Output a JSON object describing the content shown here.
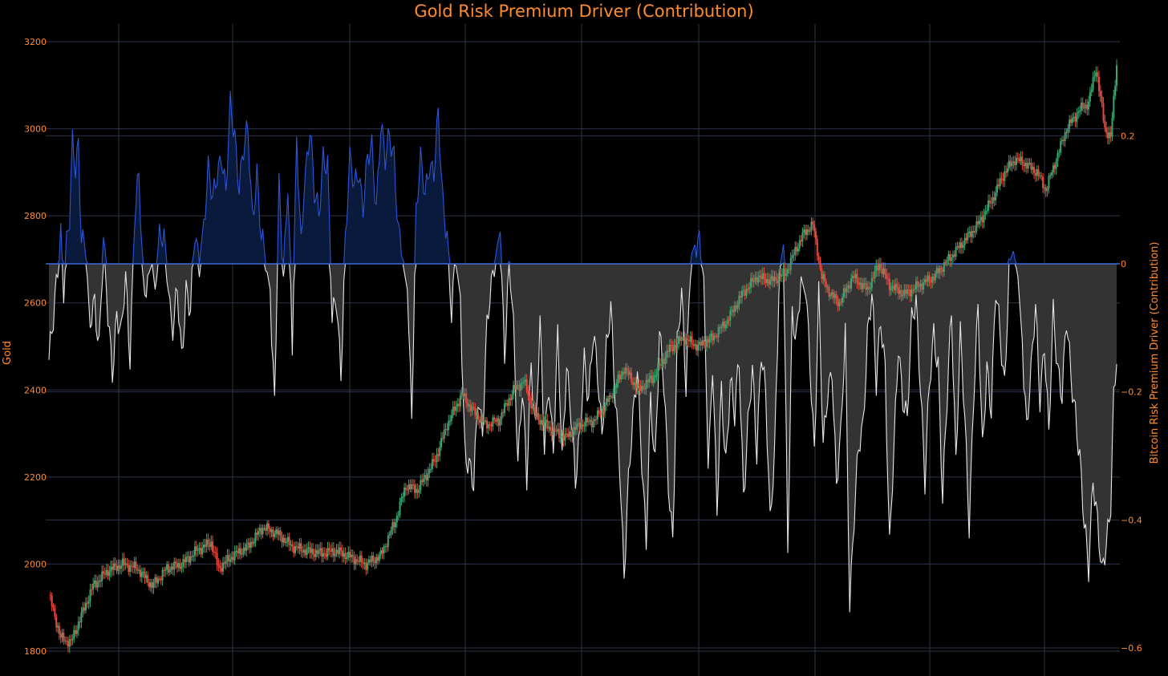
{
  "chart_data": {
    "type": "line",
    "title": "Gold Risk Premium Driver (Contribution)",
    "grid": true,
    "legend": "none",
    "colors": {
      "background": "#000000",
      "text": "#ff8c2a",
      "grid": "#2b3548",
      "up_candle": "#3aa571",
      "down_candle": "#e8483b",
      "positive_fill": "#0a1a3d",
      "positive_line": "#2b55d6",
      "negative_fill": "#333333",
      "negative_line": "#e6e6e6",
      "zero_line": "#3a6bd9"
    },
    "y_left": {
      "label": "Gold",
      "range": [
        1800,
        3200
      ],
      "ticks": [
        "1800",
        "2000",
        "2200",
        "2400",
        "2600",
        "2800",
        "3000",
        "3200"
      ]
    },
    "y_right": {
      "label": "Bitcoin Risk Premium Driver (Contribution)",
      "range": [
        -0.6,
        0.3
      ],
      "ticks": [
        "−0.6",
        "−0.4",
        "−0.2",
        "0",
        "0.2"
      ]
    },
    "gold_candles": {
      "description_points": "approximate closing path read from the chart (bar index, price)",
      "path": [
        [
          0,
          1930
        ],
        [
          8,
          1830
        ],
        [
          15,
          1820
        ],
        [
          20,
          1865
        ],
        [
          30,
          1950
        ],
        [
          40,
          1985
        ],
        [
          50,
          2000
        ],
        [
          60,
          1990
        ],
        [
          70,
          1950
        ],
        [
          80,
          1990
        ],
        [
          90,
          2000
        ],
        [
          100,
          2030
        ],
        [
          110,
          2050
        ],
        [
          115,
          1990
        ],
        [
          125,
          2020
        ],
        [
          135,
          2040
        ],
        [
          145,
          2085
        ],
        [
          155,
          2070
        ],
        [
          165,
          2040
        ],
        [
          175,
          2030
        ],
        [
          185,
          2025
        ],
        [
          195,
          2030
        ],
        [
          205,
          2015
        ],
        [
          215,
          2000
        ],
        [
          225,
          2020
        ],
        [
          235,
          2100
        ],
        [
          242,
          2180
        ],
        [
          250,
          2170
        ],
        [
          262,
          2240
        ],
        [
          270,
          2320
        ],
        [
          280,
          2390
        ],
        [
          288,
          2350
        ],
        [
          296,
          2320
        ],
        [
          305,
          2330
        ],
        [
          315,
          2400
        ],
        [
          322,
          2420
        ],
        [
          330,
          2340
        ],
        [
          340,
          2310
        ],
        [
          350,
          2290
        ],
        [
          360,
          2320
        ],
        [
          370,
          2330
        ],
        [
          380,
          2380
        ],
        [
          390,
          2450
        ],
        [
          400,
          2400
        ],
        [
          410,
          2430
        ],
        [
          420,
          2490
        ],
        [
          430,
          2520
        ],
        [
          440,
          2500
        ],
        [
          450,
          2520
        ],
        [
          460,
          2560
        ],
        [
          470,
          2620
        ],
        [
          480,
          2660
        ],
        [
          490,
          2650
        ],
        [
          500,
          2670
        ],
        [
          506,
          2720
        ],
        [
          512,
          2760
        ],
        [
          518,
          2780
        ],
        [
          524,
          2660
        ],
        [
          530,
          2620
        ],
        [
          536,
          2600
        ],
        [
          545,
          2660
        ],
        [
          555,
          2630
        ],
        [
          563,
          2690
        ],
        [
          570,
          2640
        ],
        [
          580,
          2620
        ],
        [
          590,
          2640
        ],
        [
          600,
          2660
        ],
        [
          610,
          2700
        ],
        [
          620,
          2740
        ],
        [
          630,
          2780
        ],
        [
          640,
          2840
        ],
        [
          648,
          2900
        ],
        [
          655,
          2930
        ],
        [
          662,
          2920
        ],
        [
          670,
          2900
        ],
        [
          676,
          2860
        ],
        [
          684,
          2940
        ],
        [
          690,
          3000
        ],
        [
          698,
          3040
        ],
        [
          705,
          3060
        ],
        [
          710,
          3140
        ],
        [
          716,
          3000
        ],
        [
          720,
          2980
        ],
        [
          724,
          3150
        ]
      ]
    },
    "contribution_series": {
      "n": 725,
      "points": [
        [
          0,
          -0.15
        ],
        [
          3,
          -0.1
        ],
        [
          5,
          -0.04
        ],
        [
          8,
          0.06
        ],
        [
          10,
          -0.03
        ],
        [
          12,
          0.03
        ],
        [
          14,
          0.06
        ],
        [
          16,
          0.18
        ],
        [
          18,
          0.15
        ],
        [
          20,
          0.2
        ],
        [
          22,
          0.05
        ],
        [
          25,
          0.02
        ],
        [
          28,
          -0.1
        ],
        [
          31,
          -0.05
        ],
        [
          34,
          -0.12
        ],
        [
          37,
          0.03
        ],
        [
          40,
          -0.09
        ],
        [
          43,
          -0.16
        ],
        [
          46,
          -0.07
        ],
        [
          49,
          -0.12
        ],
        [
          52,
          -0.03
        ],
        [
          55,
          -0.14
        ],
        [
          58,
          0.08
        ],
        [
          61,
          0.13
        ],
        [
          64,
          -0.05
        ],
        [
          67,
          -0.02
        ],
        [
          70,
          0.0
        ],
        [
          72,
          -0.04
        ],
        [
          75,
          0.03
        ],
        [
          78,
          0.05
        ],
        [
          81,
          -0.02
        ],
        [
          84,
          -0.12
        ],
        [
          87,
          -0.05
        ],
        [
          90,
          -0.14
        ],
        [
          93,
          -0.03
        ],
        [
          96,
          -0.08
        ],
        [
          99,
          0.04
        ],
        [
          102,
          0.0
        ],
        [
          105,
          0.07
        ],
        [
          108,
          0.14
        ],
        [
          111,
          0.09
        ],
        [
          114,
          0.15
        ],
        [
          117,
          0.18
        ],
        [
          120,
          0.1
        ],
        [
          123,
          0.24
        ],
        [
          126,
          0.21
        ],
        [
          129,
          0.13
        ],
        [
          132,
          0.17
        ],
        [
          135,
          0.2
        ],
        [
          138,
          0.08
        ],
        [
          141,
          0.15
        ],
        [
          144,
          0.03
        ],
        [
          147,
          0.0
        ],
        [
          150,
          -0.04
        ],
        [
          153,
          -0.21
        ],
        [
          156,
          0.11
        ],
        [
          159,
          -0.03
        ],
        [
          162,
          0.14
        ],
        [
          165,
          -0.12
        ],
        [
          168,
          0.18
        ],
        [
          171,
          0.02
        ],
        [
          174,
          0.15
        ],
        [
          177,
          0.22
        ],
        [
          180,
          0.1
        ],
        [
          183,
          0.07
        ],
        [
          186,
          0.18
        ],
        [
          189,
          0.16
        ],
        [
          192,
          -0.1
        ],
        [
          195,
          -0.06
        ],
        [
          198,
          -0.16
        ],
        [
          201,
          0.04
        ],
        [
          204,
          0.15
        ],
        [
          207,
          0.12
        ],
        [
          210,
          0.16
        ],
        [
          213,
          0.09
        ],
        [
          216,
          0.15
        ],
        [
          219,
          0.18
        ],
        [
          222,
          0.1
        ],
        [
          225,
          0.22
        ],
        [
          228,
          0.15
        ],
        [
          231,
          0.2
        ],
        [
          234,
          0.18
        ],
        [
          237,
          0.05
        ],
        [
          240,
          0.0
        ],
        [
          243,
          -0.04
        ],
        [
          246,
          -0.22
        ],
        [
          249,
          0.08
        ],
        [
          252,
          0.15
        ],
        [
          255,
          0.11
        ],
        [
          258,
          0.17
        ],
        [
          261,
          0.14
        ],
        [
          264,
          0.22
        ],
        [
          267,
          0.1
        ],
        [
          270,
          0.06
        ],
        [
          273,
          -0.08
        ],
        [
          276,
          0.0
        ],
        [
          279,
          -0.05
        ],
        [
          282,
          -0.28
        ],
        [
          285,
          -0.32
        ],
        [
          288,
          -0.36
        ],
        [
          291,
          -0.2
        ],
        [
          294,
          -0.25
        ],
        [
          297,
          -0.1
        ],
        [
          300,
          -0.05
        ],
        [
          303,
          0.02
        ],
        [
          306,
          0.05
        ],
        [
          309,
          -0.15
        ],
        [
          312,
          -0.02
        ],
        [
          315,
          -0.08
        ],
        [
          318,
          -0.3
        ],
        [
          321,
          -0.2
        ],
        [
          324,
          -0.35
        ],
        [
          327,
          -0.15
        ],
        [
          330,
          -0.25
        ],
        [
          333,
          -0.1
        ],
        [
          336,
          -0.3
        ],
        [
          339,
          -0.18
        ],
        [
          342,
          -0.28
        ],
        [
          345,
          -0.12
        ],
        [
          348,
          -0.32
        ],
        [
          351,
          -0.15
        ],
        [
          354,
          -0.22
        ],
        [
          357,
          -0.35
        ],
        [
          360,
          -0.28
        ],
        [
          363,
          -0.14
        ],
        [
          366,
          -0.2
        ],
        [
          369,
          -0.12
        ],
        [
          372,
          -0.18
        ],
        [
          375,
          -0.26
        ],
        [
          378,
          -0.12
        ],
        [
          381,
          -0.08
        ],
        [
          384,
          -0.22
        ],
        [
          387,
          -0.3
        ],
        [
          390,
          -0.48
        ],
        [
          393,
          -0.35
        ],
        [
          396,
          -0.25
        ],
        [
          399,
          -0.15
        ],
        [
          402,
          -0.3
        ],
        [
          405,
          -0.45
        ],
        [
          408,
          -0.22
        ],
        [
          411,
          -0.3
        ],
        [
          414,
          -0.1
        ],
        [
          417,
          -0.2
        ],
        [
          420,
          -0.35
        ],
        [
          423,
          -0.42
        ],
        [
          426,
          -0.12
        ],
        [
          429,
          -0.06
        ],
        [
          432,
          -0.2
        ],
        [
          435,
          0.01
        ],
        [
          438,
          0.03
        ],
        [
          441,
          0.02
        ],
        [
          444,
          -0.02
        ],
        [
          447,
          -0.32
        ],
        [
          450,
          -0.15
        ],
        [
          453,
          -0.4
        ],
        [
          456,
          -0.2
        ],
        [
          459,
          -0.3
        ],
        [
          462,
          -0.18
        ],
        [
          465,
          -0.25
        ],
        [
          468,
          -0.15
        ],
        [
          471,
          -0.35
        ],
        [
          474,
          -0.25
        ],
        [
          477,
          -0.18
        ],
        [
          480,
          -0.3
        ],
        [
          483,
          -0.12
        ],
        [
          486,
          -0.2
        ],
        [
          489,
          -0.42
        ],
        [
          492,
          -0.3
        ],
        [
          495,
          -0.02
        ],
        [
          498,
          0.03
        ],
        [
          501,
          -0.46
        ],
        [
          504,
          -0.08
        ],
        [
          507,
          -0.1
        ],
        [
          510,
          -0.02
        ],
        [
          513,
          -0.05
        ],
        [
          516,
          -0.15
        ],
        [
          519,
          -0.28
        ],
        [
          522,
          -0.05
        ],
        [
          525,
          -0.3
        ],
        [
          528,
          -0.2
        ],
        [
          531,
          -0.15
        ],
        [
          534,
          -0.35
        ],
        [
          537,
          -0.28
        ],
        [
          540,
          -0.1
        ],
        [
          543,
          -0.52
        ],
        [
          546,
          -0.4
        ],
        [
          549,
          -0.3
        ],
        [
          552,
          -0.25
        ],
        [
          555,
          -0.1
        ],
        [
          558,
          -0.05
        ],
        [
          561,
          -0.2
        ],
        [
          564,
          -0.08
        ],
        [
          567,
          -0.15
        ],
        [
          570,
          -0.45
        ],
        [
          573,
          -0.3
        ],
        [
          576,
          -0.12
        ],
        [
          579,
          -0.2
        ],
        [
          582,
          -0.25
        ],
        [
          585,
          -0.1
        ],
        [
          588,
          -0.05
        ],
        [
          591,
          -0.18
        ],
        [
          594,
          -0.35
        ],
        [
          597,
          -0.2
        ],
        [
          600,
          -0.1
        ],
        [
          603,
          -0.15
        ],
        [
          606,
          -0.38
        ],
        [
          609,
          -0.22
        ],
        [
          612,
          -0.06
        ],
        [
          615,
          -0.3
        ],
        [
          618,
          -0.12
        ],
        [
          621,
          -0.25
        ],
        [
          624,
          -0.4
        ],
        [
          627,
          -0.2
        ],
        [
          630,
          -0.08
        ],
        [
          633,
          -0.3
        ],
        [
          636,
          -0.15
        ],
        [
          639,
          -0.22
        ],
        [
          642,
          -0.05
        ],
        [
          645,
          -0.12
        ],
        [
          648,
          -0.18
        ],
        [
          651,
          0.0
        ],
        [
          654,
          0.02
        ],
        [
          657,
          -0.02
        ],
        [
          660,
          -0.12
        ],
        [
          663,
          -0.25
        ],
        [
          666,
          -0.18
        ],
        [
          669,
          -0.07
        ],
        [
          672,
          -0.2
        ],
        [
          675,
          -0.12
        ],
        [
          678,
          -0.28
        ],
        [
          681,
          -0.08
        ],
        [
          684,
          -0.15
        ],
        [
          687,
          -0.2
        ],
        [
          690,
          -0.1
        ],
        [
          693,
          -0.18
        ],
        [
          696,
          -0.22
        ],
        [
          699,
          -0.3
        ],
        [
          702,
          -0.42
        ],
        [
          705,
          -0.48
        ],
        [
          708,
          -0.32
        ],
        [
          711,
          -0.4
        ],
        [
          714,
          -0.5
        ],
        [
          717,
          -0.44
        ],
        [
          720,
          -0.36
        ],
        [
          722,
          -0.2
        ],
        [
          724,
          -0.15
        ]
      ]
    }
  }
}
